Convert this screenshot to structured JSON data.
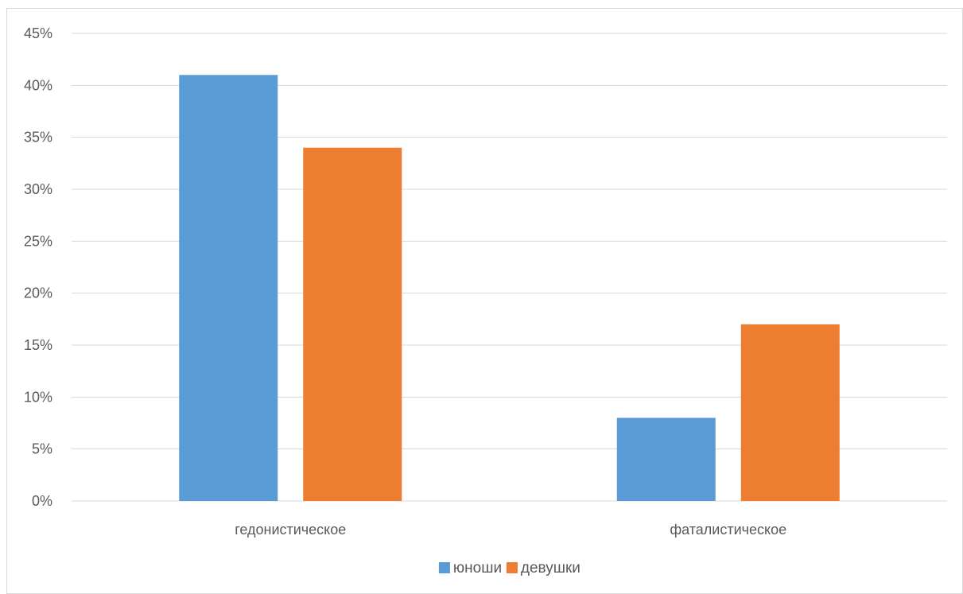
{
  "chart_data": {
    "type": "bar",
    "title": "",
    "xlabel": "",
    "ylabel": "",
    "categories": [
      "гедонистическое",
      "фаталистическое"
    ],
    "series": [
      {
        "name": "юноши",
        "color": "#5b9bd5",
        "values": [
          0.41,
          0.08
        ]
      },
      {
        "name": "девушки",
        "color": "#ed7d31",
        "values": [
          0.34,
          0.17
        ]
      }
    ],
    "ylim": [
      0,
      0.45
    ],
    "y_ticks": [
      0,
      0.05,
      0.1,
      0.15,
      0.2,
      0.25,
      0.3,
      0.35,
      0.4,
      0.45
    ],
    "y_tick_labels": [
      "0%",
      "5%",
      "10%",
      "15%",
      "20%",
      "25%",
      "30%",
      "35%",
      "40%",
      "45%"
    ],
    "grid": true,
    "legend_position": "bottom"
  }
}
